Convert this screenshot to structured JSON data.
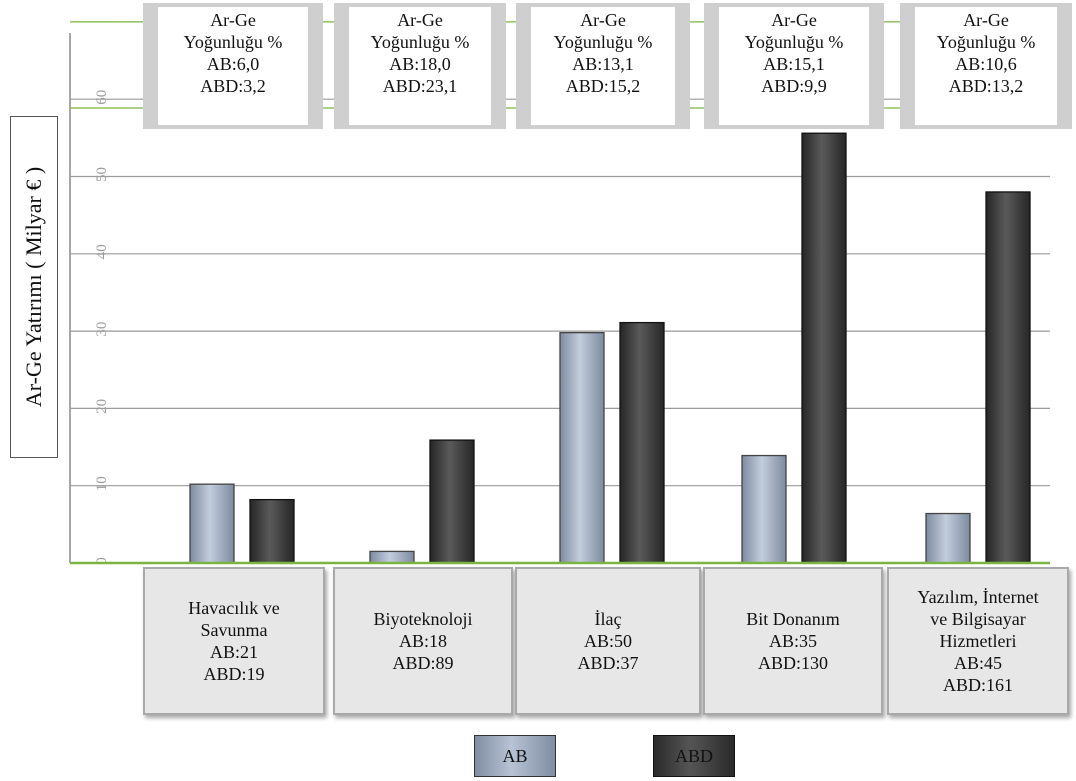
{
  "chart_data": {
    "type": "bar",
    "title": "",
    "xlabel": "",
    "ylabel": "Ar-Ge Yatırımı ( Milyar € )",
    "ylim": [
      0,
      70
    ],
    "yticks": [
      "0",
      "10",
      "20",
      "30",
      "40",
      "50",
      "60"
    ],
    "categories": [
      "Havacılık ve Savunma",
      "Biyoteknoloji",
      "İlaç",
      "Bit Donanım",
      "Yazılım, İnternet ve Bilgisayar Hizmetleri"
    ],
    "category_lines": [
      [
        "Havacılık ve",
        "Savunma",
        "AB:21",
        "ABD:19"
      ],
      [
        "Biyoteknoloji",
        "AB:18",
        "ABD:89"
      ],
      [
        "İlaç",
        "AB:50",
        "ABD:37"
      ],
      [
        "Bit Donanım",
        "AB:35",
        "ABD:130"
      ],
      [
        "Yazılım, İnternet",
        "ve Bilgisayar",
        "Hizmetleri",
        "AB:45",
        "ABD:161"
      ]
    ],
    "series": [
      {
        "name": "AB",
        "color": "#a9b6c8",
        "values": [
          10.2,
          1.5,
          29.8,
          13.9,
          6.4
        ]
      },
      {
        "name": "ABD",
        "color": "#3a3a3a",
        "values": [
          8.2,
          15.9,
          31.1,
          55.6,
          48.0
        ]
      }
    ],
    "intensity_boxes": [
      [
        "Ar-Ge",
        "Yoğunluğu %",
        "AB:6,0",
        "ABD:3,2"
      ],
      [
        "Ar-Ge",
        "Yoğunluğu %",
        "AB:18,0",
        "ABD:23,1"
      ],
      [
        "Ar-Ge",
        "Yoğunluğu %",
        "AB:13,1",
        "ABD:15,2"
      ],
      [
        "Ar-Ge",
        "Yoğunluğu %",
        "AB:15,1",
        "ABD:9,9"
      ],
      [
        "Ar-Ge",
        "Yoğunluğu %",
        "AB:10,6",
        "ABD:13,2"
      ]
    ],
    "legend": {
      "position": "bottom",
      "items": [
        "AB",
        "ABD"
      ]
    },
    "grid": true,
    "colors": {
      "grid": "#9a9a9a",
      "baseline": "#7cb342",
      "ab": "#a9b6c8",
      "abd": "#3a3a3a"
    }
  }
}
